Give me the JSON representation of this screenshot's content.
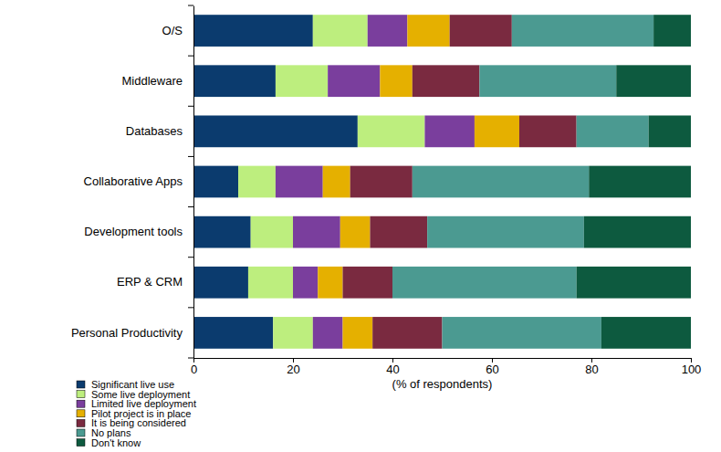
{
  "chart_data": {
    "type": "bar",
    "orientation": "horizontal",
    "stacked": true,
    "x_label": "(% of respondents)",
    "categories": [
      "O/S",
      "Middleware",
      "Databases",
      "Collaborative Apps",
      "Development tools",
      "ERP & CRM",
      "Personal Productivity"
    ],
    "series": [
      {
        "name": "Significant live use",
        "color": "#0b3b6e",
        "values": [
          24,
          16.5,
          33,
          9,
          11.5,
          11,
          16
        ]
      },
      {
        "name": "Some live deployment",
        "color": "#bdee7e",
        "values": [
          11,
          10.5,
          13.5,
          7.5,
          8.5,
          9,
          8
        ]
      },
      {
        "name": "Limited live deployment",
        "color": "#7a3e9d",
        "values": [
          8,
          10.5,
          10,
          9.5,
          9.5,
          5,
          6
        ]
      },
      {
        "name": "Pilot project is in place",
        "color": "#e5b000",
        "values": [
          8.5,
          6.5,
          9,
          5.5,
          6,
          5,
          6
        ]
      },
      {
        "name": "It is being considered",
        "color": "#7a2a40",
        "values": [
          12.5,
          13.5,
          11.5,
          12.5,
          11.5,
          10,
          14
        ]
      },
      {
        "name": "No plans",
        "color": "#4b9a91",
        "values": [
          28.5,
          27.5,
          14.5,
          35.5,
          31.5,
          37,
          32
        ]
      },
      {
        "name": "Don't know",
        "color": "#0d5a3f",
        "values": [
          7.5,
          15,
          8.5,
          20.5,
          21.5,
          23,
          18
        ]
      }
    ],
    "xlim": [
      0,
      100
    ],
    "xticks": [
      0,
      20,
      40,
      60,
      80,
      100
    ],
    "grid": false,
    "legend": "bottom-left"
  }
}
